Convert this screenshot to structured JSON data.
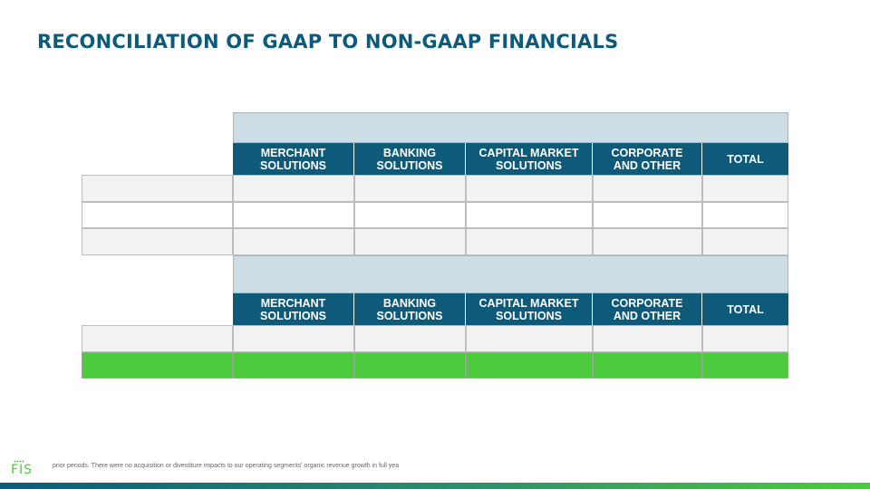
{
  "title": "RECONCILIATION OF GAAP TO NON-GAAP FINANCIALS",
  "columns_top": [
    "MERCHANT\nSOLUTIONS",
    "BANKING\nSOLUTIONS",
    "CAPITAL MARKET\nSOLUTIONS",
    "CORPORATE\nAND OTHER",
    "TOTAL"
  ],
  "columns_bottom": [
    "MERCHANT\nSOLUTIONS",
    "BANKING\nSOLUTIONS",
    "CAPITAL MARKET\nSOLUTIONS",
    "CORPORATE\nAND OTHER",
    "TOTAL"
  ],
  "footnote": "prior periods. There were no acquisition or divestiture impacts to our operating segments' organic revenue growth in full yea",
  "logo": "FIS",
  "colors": {
    "brand_blue": "#0d5a7a",
    "band_blue": "#cddde6",
    "highlight_green": "#4ccc3d",
    "row_gray": "#f2f2f2"
  }
}
